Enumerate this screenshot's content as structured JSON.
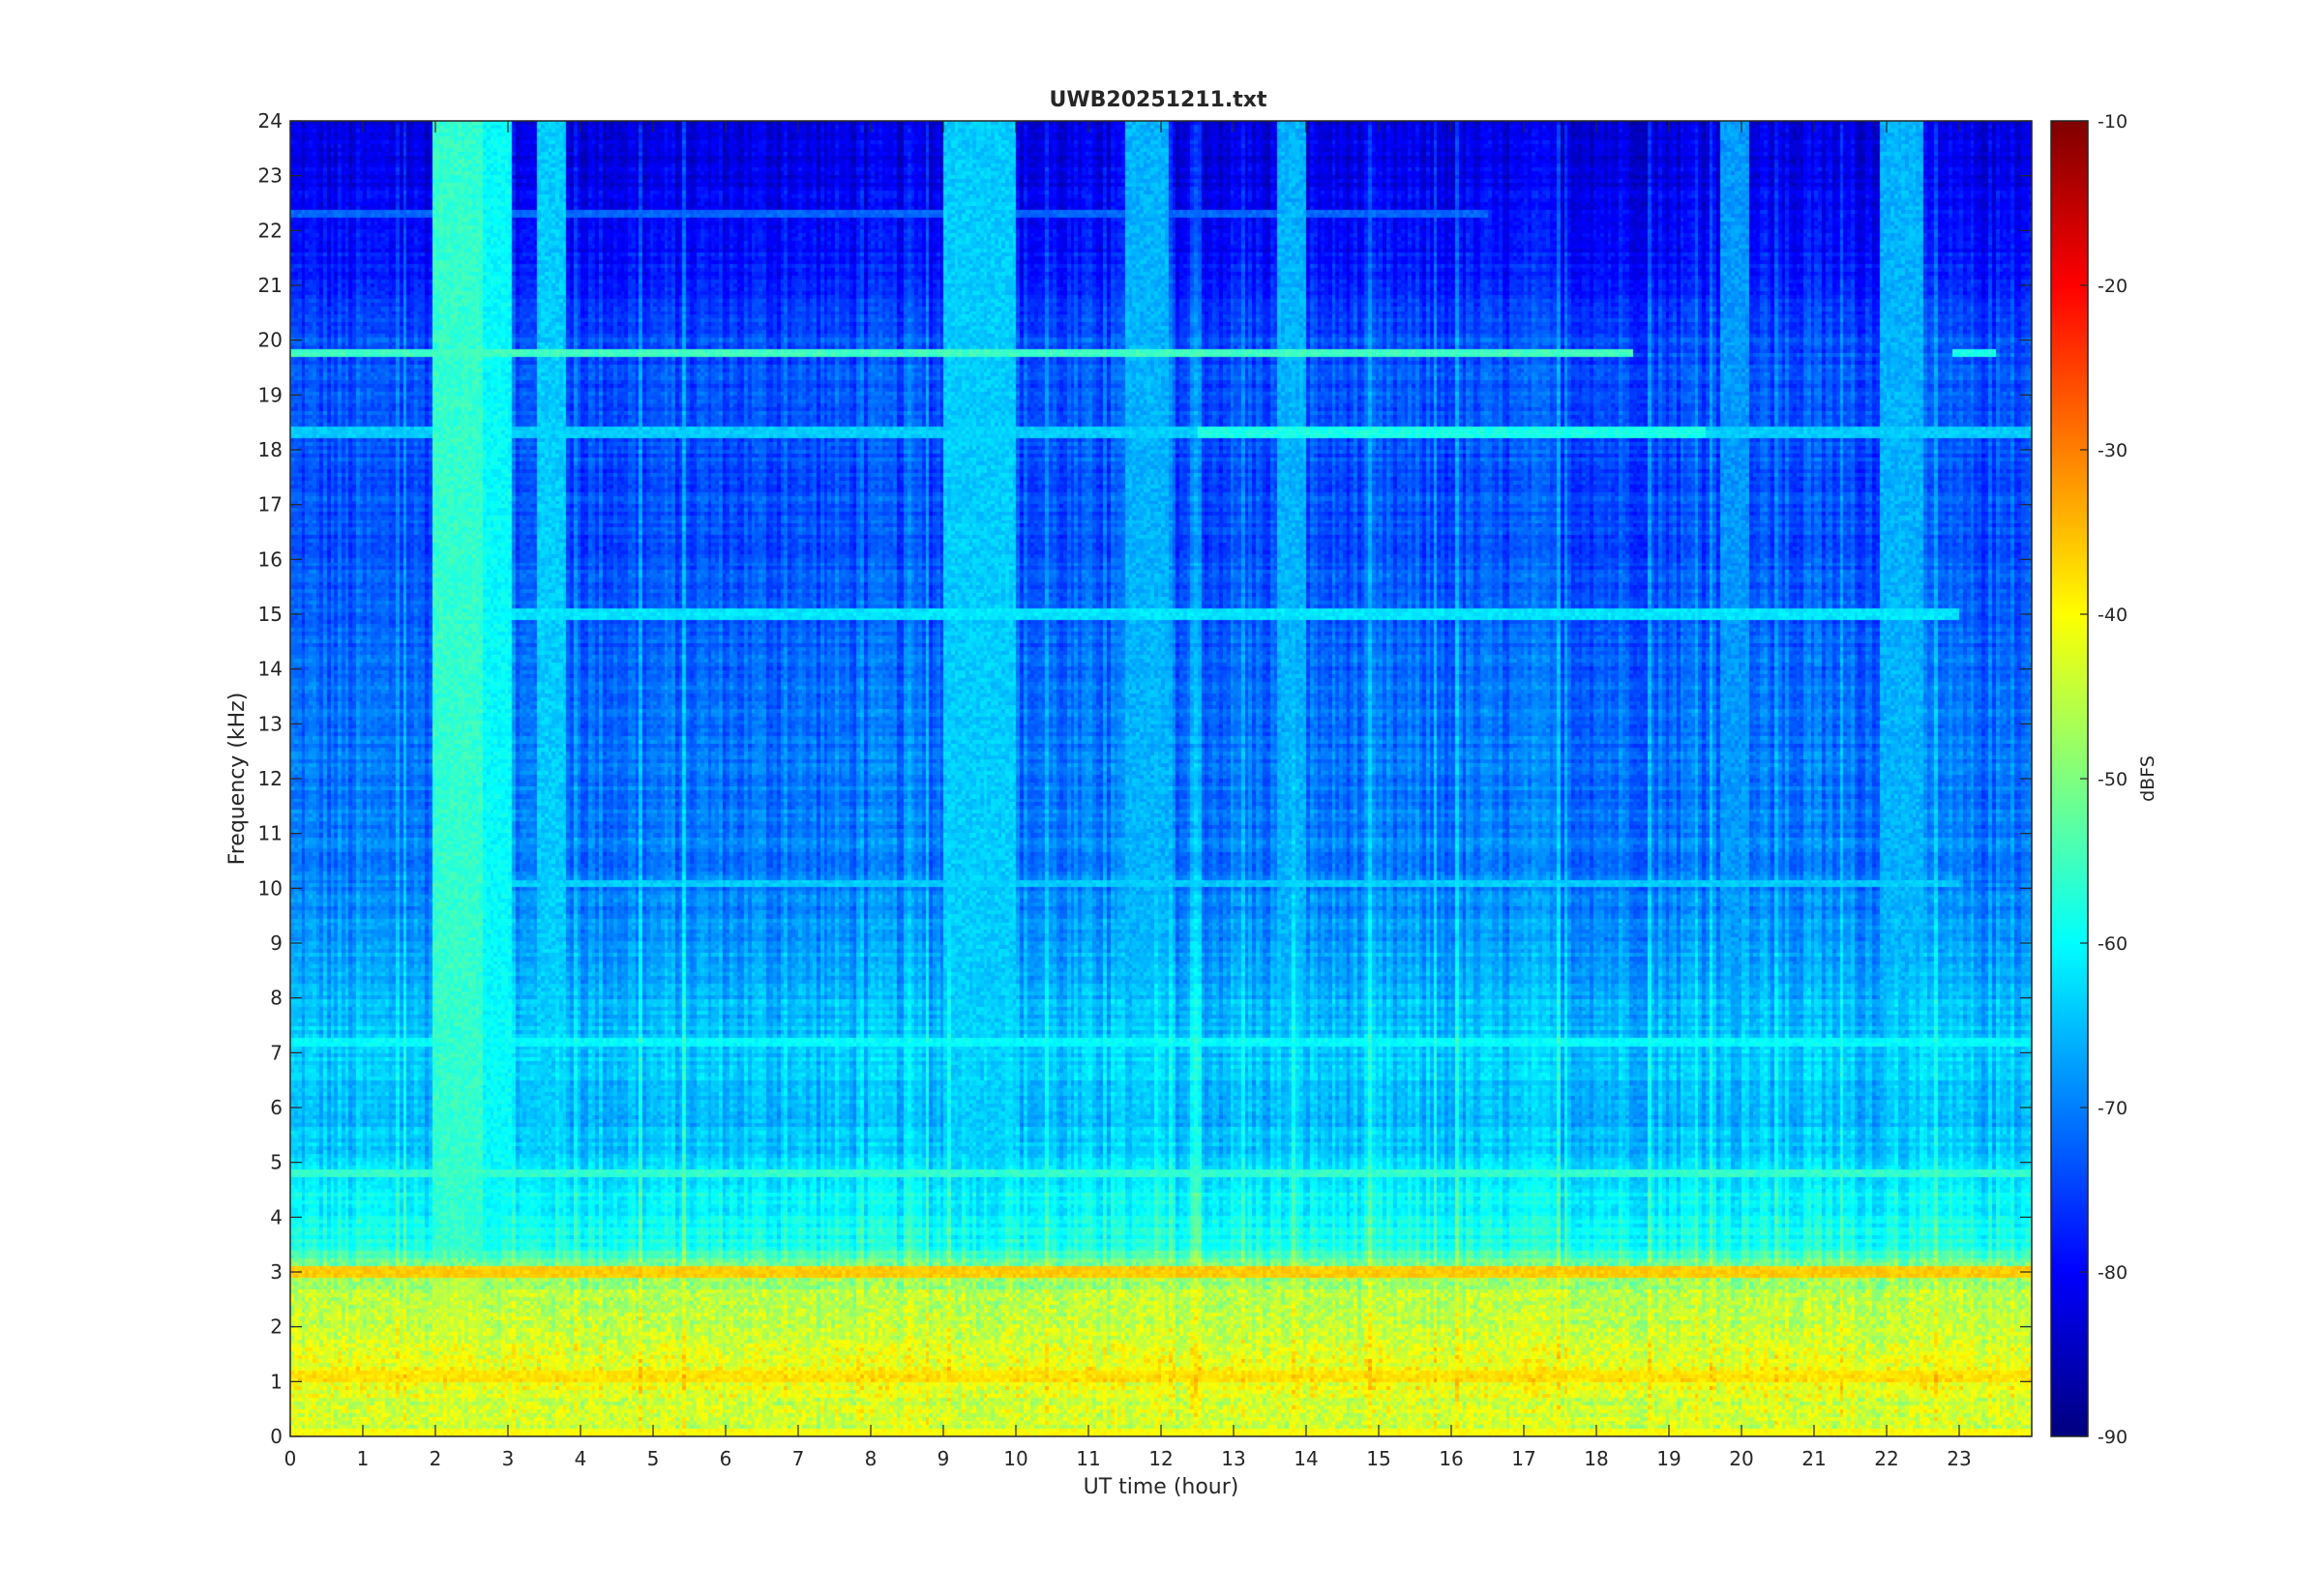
{
  "chart_data": {
    "type": "heatmap",
    "title": "UWB20251211.txt",
    "xlabel": "UT time (hour)",
    "ylabel": "Frequency (kHz)",
    "xlim": [
      0,
      24
    ],
    "ylim": [
      0,
      24
    ],
    "x_ticks": [
      0,
      1,
      2,
      3,
      4,
      5,
      6,
      7,
      8,
      9,
      10,
      11,
      12,
      13,
      14,
      15,
      16,
      17,
      18,
      19,
      20,
      21,
      22,
      23
    ],
    "y_ticks": [
      0,
      1,
      2,
      3,
      4,
      5,
      6,
      7,
      8,
      9,
      10,
      11,
      12,
      13,
      14,
      15,
      16,
      17,
      18,
      19,
      20,
      21,
      22,
      23,
      24
    ],
    "colorbar": {
      "label": "dBFS",
      "range": [
        -90,
        -10
      ],
      "ticks": [
        -10,
        -20,
        -30,
        -40,
        -50,
        -60,
        -70,
        -80,
        -90
      ],
      "colormap": "jet"
    },
    "grid": false,
    "background_level_db": {
      "freq_khz": [
        0,
        0.5,
        1,
        1.5,
        2,
        2.5,
        3,
        3.5,
        4,
        4.5,
        5,
        6,
        7,
        8,
        9,
        10,
        12,
        14,
        16,
        18,
        20,
        21,
        22,
        24
      ],
      "db": [
        -45,
        -44,
        -41,
        -42,
        -44,
        -46,
        -48,
        -58,
        -60,
        -60,
        -64,
        -66,
        -64,
        -66,
        -68,
        -70,
        -71,
        -72,
        -74,
        -74,
        -74,
        -78,
        -80,
        -83
      ]
    },
    "horizontal_bands": [
      {
        "freq_khz": 19.75,
        "t_start": 0,
        "t_end": 18.5,
        "db": -55
      },
      {
        "freq_khz": 19.75,
        "t_start": 22.9,
        "t_end": 23.5,
        "db": -58
      },
      {
        "freq_khz": 18.3,
        "t_start": 0,
        "t_end": 24,
        "db": -64
      },
      {
        "freq_khz": 18.3,
        "t_start": 12.5,
        "t_end": 19.5,
        "db": -58
      },
      {
        "freq_khz": 22.3,
        "t_start": 0,
        "t_end": 16.5,
        "db": -72
      },
      {
        "freq_khz": 15.0,
        "t_start": 3,
        "t_end": 23,
        "db": -62
      },
      {
        "freq_khz": 10.1,
        "t_start": 3,
        "t_end": 23,
        "db": -64
      },
      {
        "freq_khz": 7.2,
        "t_start": 0,
        "t_end": 24,
        "db": -60
      },
      {
        "freq_khz": 4.8,
        "t_start": 0,
        "t_end": 24,
        "db": -56
      },
      {
        "freq_khz": 3.0,
        "t_start": 0,
        "t_end": 24,
        "db": -36
      },
      {
        "freq_khz": 1.1,
        "t_start": 0,
        "t_end": 24,
        "db": -38
      },
      {
        "freq_khz": 0.05,
        "t_start": 0,
        "t_end": 24,
        "db": -40
      }
    ],
    "vertical_bursts": [
      {
        "t": 2.3,
        "width_h": 0.35,
        "db": -56
      },
      {
        "t": 2.85,
        "width_h": 0.2,
        "db": -60
      },
      {
        "t": 3.6,
        "width_h": 0.2,
        "db": -64
      },
      {
        "t": 9.5,
        "width_h": 0.5,
        "db": -64
      },
      {
        "t": 11.8,
        "width_h": 0.3,
        "db": -66
      },
      {
        "t": 13.8,
        "width_h": 0.2,
        "db": -66
      },
      {
        "t": 19.9,
        "width_h": 0.2,
        "db": -68
      },
      {
        "t": 22.2,
        "width_h": 0.3,
        "db": -66
      }
    ]
  }
}
